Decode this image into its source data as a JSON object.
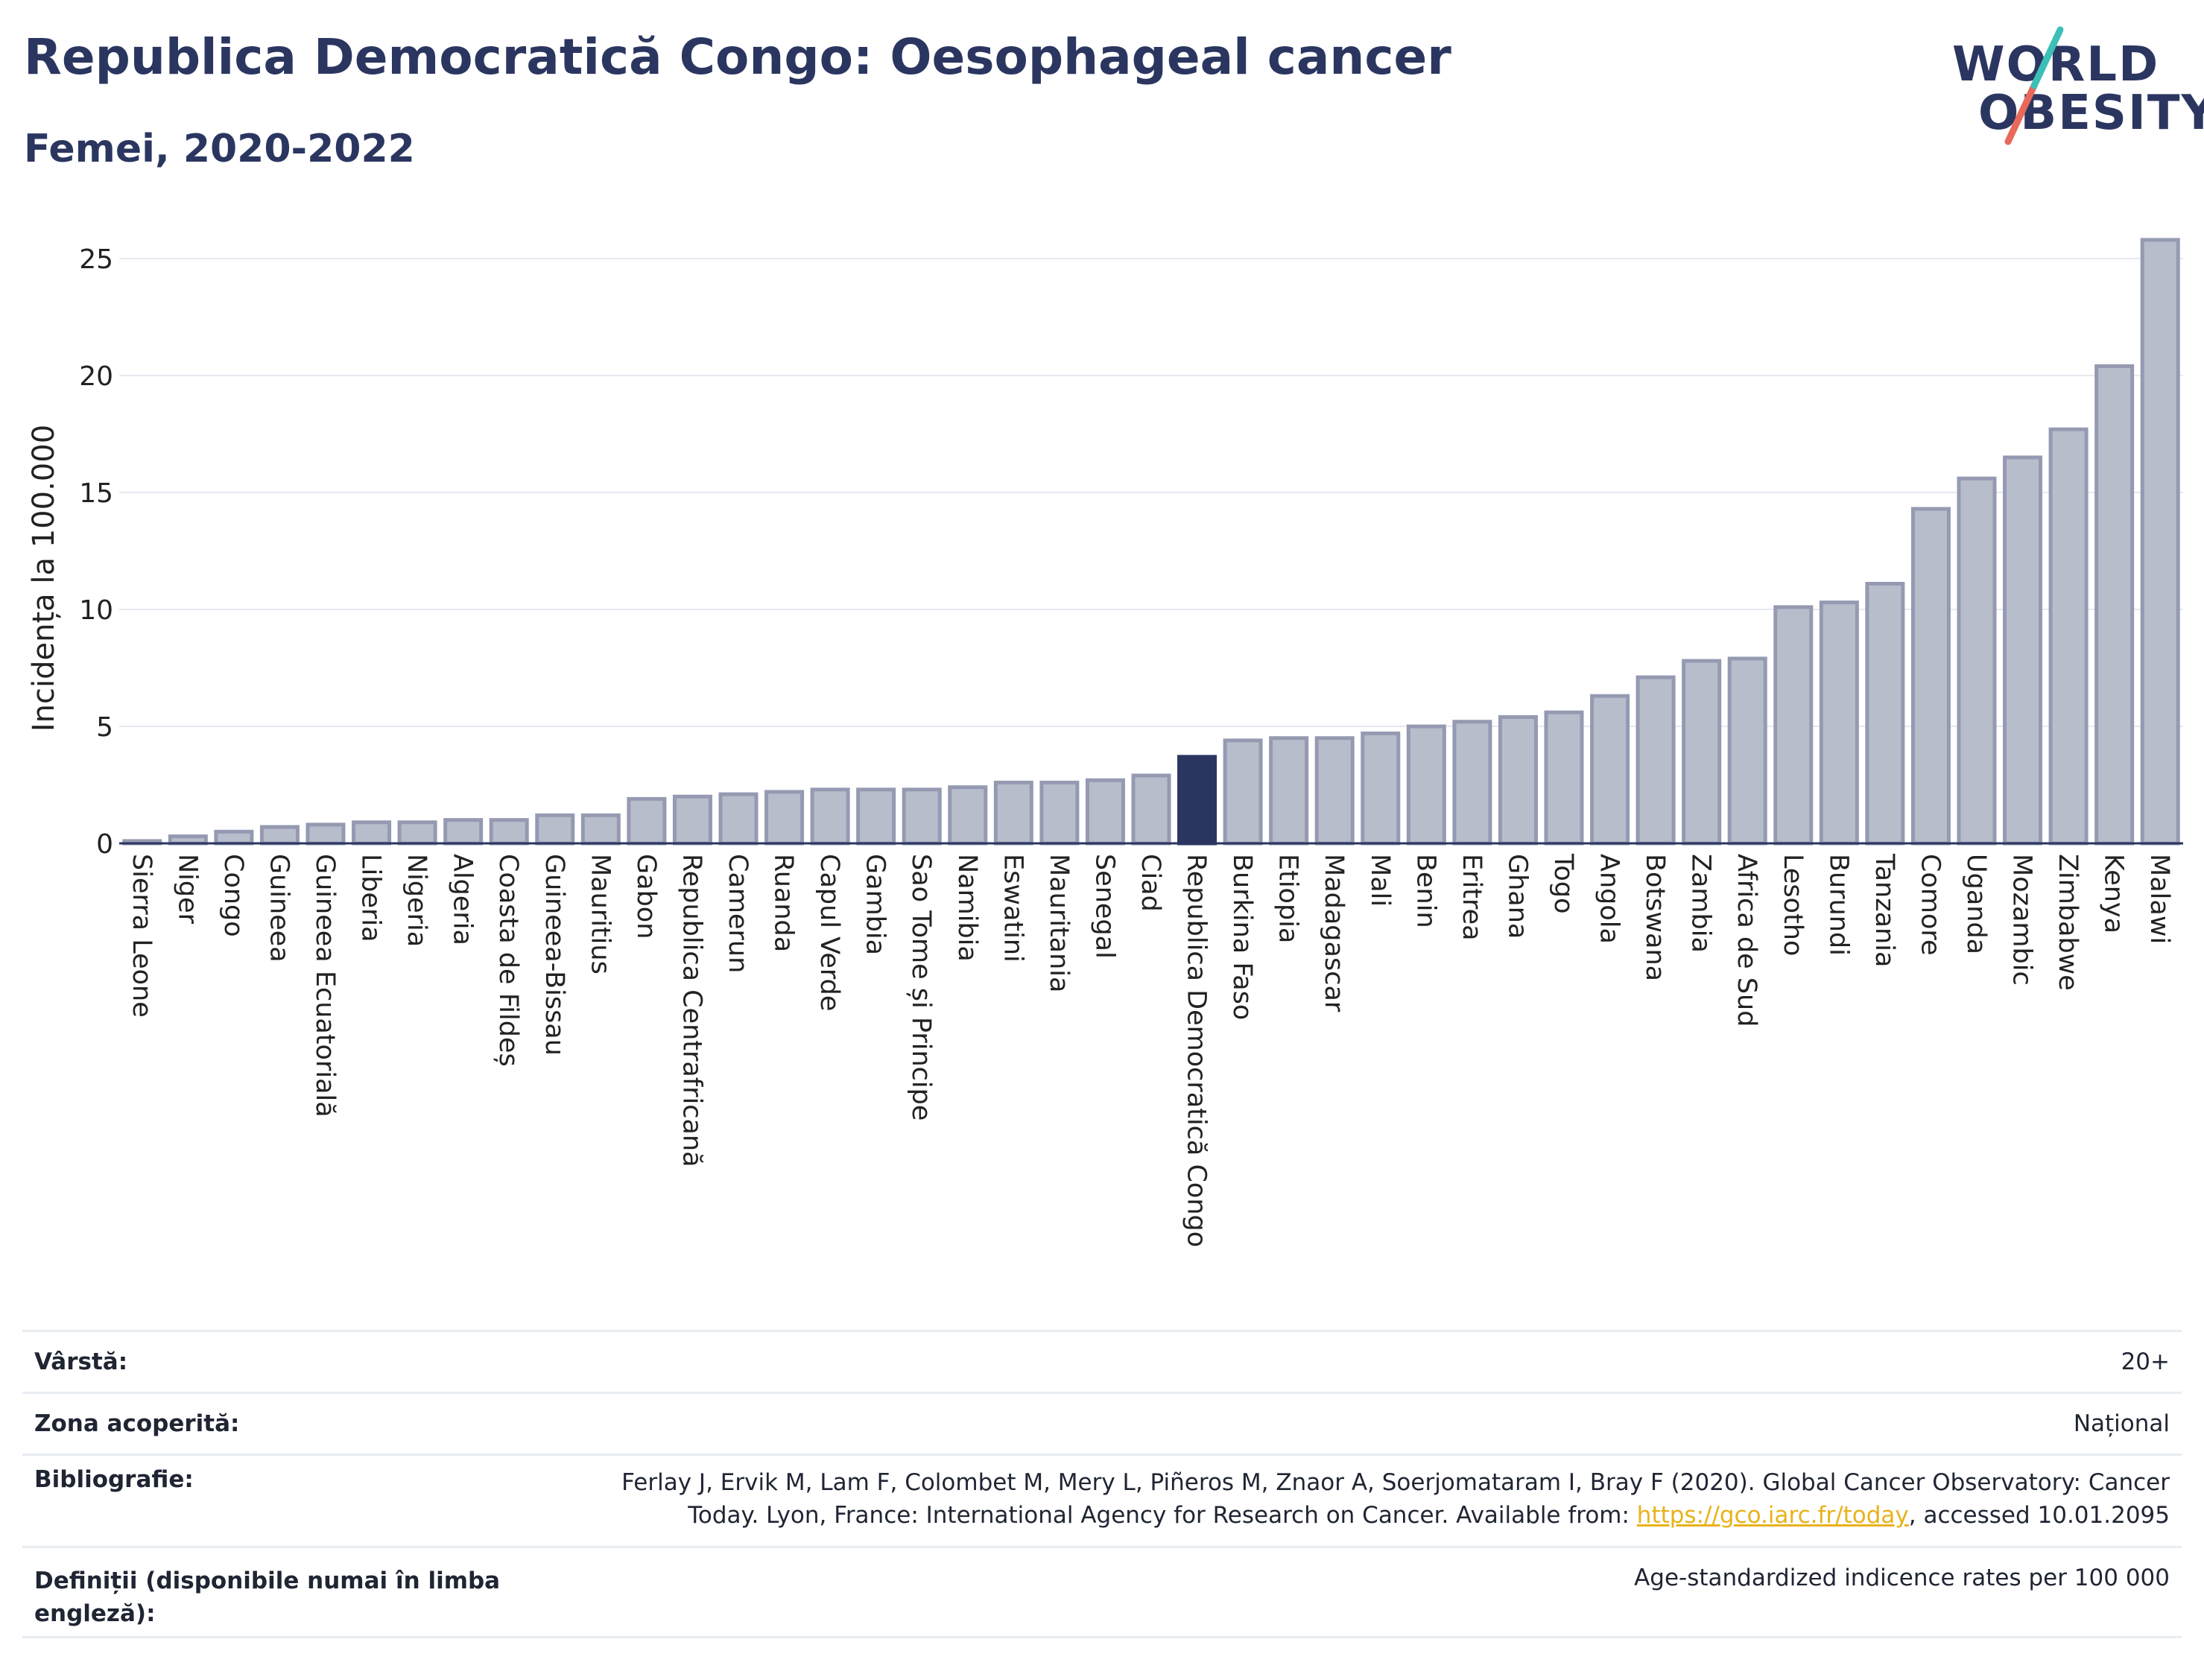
{
  "header": {
    "title": "Republica Democratică Congo: Oesophageal cancer",
    "subtitle": "Femei, 2020-2022"
  },
  "logo": {
    "line1": "WORLD",
    "line2": "OBESITY"
  },
  "colors": {
    "bar": "#b8bdcc",
    "bar_stroke": "#959ab2",
    "highlight": "#2b3660",
    "text": "#2b3660"
  },
  "chart_data": {
    "type": "bar",
    "title": "Republica Democratică Congo: Oesophageal cancer",
    "subtitle": "Femei, 2020-2022",
    "xlabel": "",
    "ylabel": "Incidența la 100.000",
    "ylim": [
      0,
      26.5
    ],
    "yticks": [
      0,
      5,
      10,
      15,
      20,
      25
    ],
    "grid": true,
    "highlight": "Republica Democratică Congo",
    "categories": [
      "Sierra Leone",
      "Niger",
      "Congo",
      "Guineea",
      "Guineea Ecuatorială",
      "Liberia",
      "Nigeria",
      "Algeria",
      "Coasta de Fildeș",
      "Guineea-Bissau",
      "Mauritius",
      "Gabon",
      "Republica Centrafricană",
      "Camerun",
      "Ruanda",
      "Capul Verde",
      "Gambia",
      "Sao Tome și Principe",
      "Namibia",
      "Eswatini",
      "Mauritania",
      "Senegal",
      "Ciad",
      "Republica Democratică Congo",
      "Burkina Faso",
      "Etiopia",
      "Madagascar",
      "Mali",
      "Benin",
      "Eritrea",
      "Ghana",
      "Togo",
      "Angola",
      "Botswana",
      "Zambia",
      "Africa de Sud",
      "Lesotho",
      "Burundi",
      "Tanzania",
      "Comore",
      "Uganda",
      "Mozambic",
      "Zimbabwe",
      "Kenya",
      "Malawi"
    ],
    "values": [
      0.1,
      0.3,
      0.5,
      0.7,
      0.8,
      0.9,
      0.9,
      1.0,
      1.0,
      1.2,
      1.2,
      1.9,
      2.0,
      2.1,
      2.2,
      2.3,
      2.3,
      2.3,
      2.4,
      2.6,
      2.6,
      2.7,
      2.9,
      3.7,
      4.4,
      4.5,
      4.5,
      4.7,
      5.0,
      5.2,
      5.4,
      5.6,
      6.3,
      7.1,
      7.8,
      7.9,
      10.1,
      10.3,
      11.1,
      14.3,
      15.6,
      16.5,
      17.7,
      20.4,
      25.8
    ]
  },
  "info": {
    "age_label": "Vârstă:",
    "age_value": "20+",
    "area_label": "Zona acoperită:",
    "area_value": "Național",
    "bib_label": "Bibliografie:",
    "bib_line1": "Ferlay J, Ervik M, Lam F, Colombet M, Mery L, Piñeros M, Znaor A, Soerjomataram I, Bray F (2020). Global Cancer Observatory: Cancer",
    "bib_line2_pre": "Today. Lyon, France: International Agency for Research on Cancer. Available from: ",
    "bib_link": "https://gco.iarc.fr/today",
    "bib_line2_post": ", accessed 10.01.2095",
    "def_label": "Definiții (disponibile numai în limba engleză):",
    "def_value": "Age-standardized indicence rates per 100 000"
  }
}
